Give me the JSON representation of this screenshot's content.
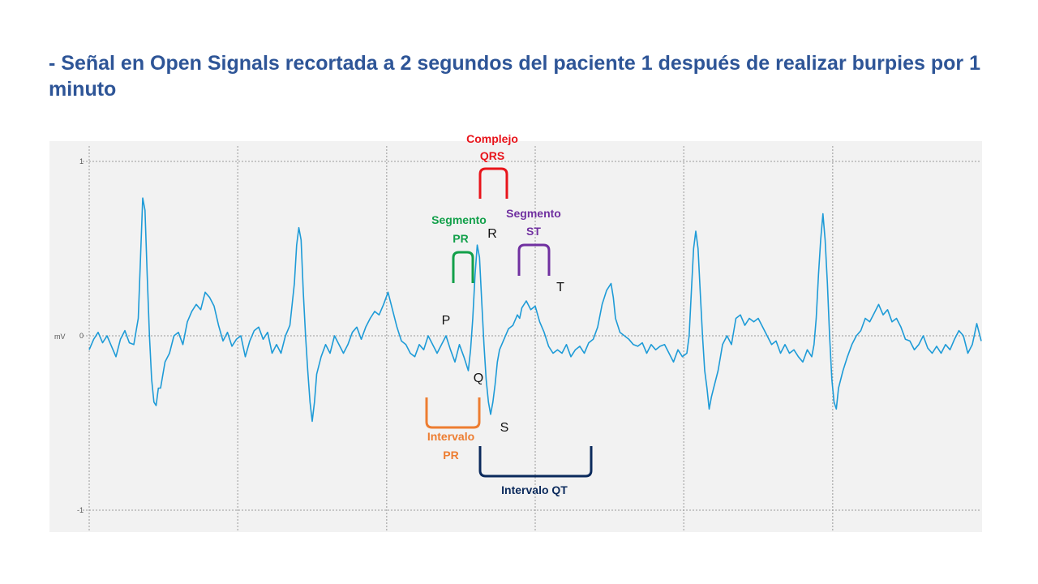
{
  "slide": {
    "title": "- Señal en Open Signals recortada a 2 segundos del paciente 1 después de realizar burpies por 1 minuto"
  },
  "colors": {
    "signal": "#1E9BD7",
    "background": "#F2F2F2",
    "grid": "#9A9A9A",
    "title": "#2E5597",
    "qrs": "#E8141B",
    "pr_segment": "#12A04A",
    "st_segment": "#7030A0",
    "pr_interval": "#ED7D31",
    "qt_interval": "#0B2A5C"
  },
  "chart_data": {
    "type": "line",
    "ylabel": "mV",
    "ylim": [
      -1.1,
      1.05
    ],
    "y_ticks": [
      {
        "value": 1,
        "label": "1"
      },
      {
        "value": 0,
        "label": "0"
      },
      {
        "value": -1,
        "label": "-1"
      }
    ],
    "xlim": [
      0,
      2
    ],
    "x_gridlines": [
      0,
      0.333,
      0.667,
      1.0,
      1.333,
      1.667
    ],
    "grid": true,
    "series": [
      {
        "points": [
          [
            0.0,
            -0.08
          ],
          [
            0.01,
            -0.02
          ],
          [
            0.02,
            0.02
          ],
          [
            0.03,
            -0.04
          ],
          [
            0.04,
            0.0
          ],
          [
            0.05,
            -0.06
          ],
          [
            0.06,
            -0.12
          ],
          [
            0.07,
            -0.02
          ],
          [
            0.08,
            0.03
          ],
          [
            0.09,
            -0.04
          ],
          [
            0.1,
            -0.05
          ],
          [
            0.11,
            0.1
          ],
          [
            0.115,
            0.45
          ],
          [
            0.12,
            0.79
          ],
          [
            0.125,
            0.72
          ],
          [
            0.13,
            0.35
          ],
          [
            0.135,
            0.0
          ],
          [
            0.14,
            -0.25
          ],
          [
            0.145,
            -0.38
          ],
          [
            0.15,
            -0.4
          ],
          [
            0.155,
            -0.3
          ],
          [
            0.16,
            -0.3
          ],
          [
            0.17,
            -0.15
          ],
          [
            0.18,
            -0.1
          ],
          [
            0.19,
            0.0
          ],
          [
            0.2,
            0.02
          ],
          [
            0.21,
            -0.05
          ],
          [
            0.22,
            0.08
          ],
          [
            0.23,
            0.14
          ],
          [
            0.24,
            0.18
          ],
          [
            0.25,
            0.15
          ],
          [
            0.26,
            0.25
          ],
          [
            0.27,
            0.22
          ],
          [
            0.28,
            0.17
          ],
          [
            0.29,
            0.06
          ],
          [
            0.3,
            -0.03
          ],
          [
            0.31,
            0.02
          ],
          [
            0.32,
            -0.06
          ],
          [
            0.33,
            -0.02
          ],
          [
            0.34,
            0.0
          ],
          [
            0.35,
            -0.12
          ],
          [
            0.36,
            -0.03
          ],
          [
            0.37,
            0.03
          ],
          [
            0.38,
            0.05
          ],
          [
            0.39,
            -0.02
          ],
          [
            0.4,
            0.02
          ],
          [
            0.41,
            -0.1
          ],
          [
            0.42,
            -0.05
          ],
          [
            0.43,
            -0.1
          ],
          [
            0.44,
            0.0
          ],
          [
            0.45,
            0.06
          ],
          [
            0.46,
            0.3
          ],
          [
            0.465,
            0.52
          ],
          [
            0.47,
            0.62
          ],
          [
            0.475,
            0.55
          ],
          [
            0.48,
            0.25
          ],
          [
            0.485,
            0.0
          ],
          [
            0.49,
            -0.2
          ],
          [
            0.495,
            -0.38
          ],
          [
            0.5,
            -0.49
          ],
          [
            0.505,
            -0.38
          ],
          [
            0.51,
            -0.22
          ],
          [
            0.52,
            -0.12
          ],
          [
            0.53,
            -0.05
          ],
          [
            0.54,
            -0.1
          ],
          [
            0.55,
            0.0
          ],
          [
            0.56,
            -0.05
          ],
          [
            0.57,
            -0.1
          ],
          [
            0.58,
            -0.05
          ],
          [
            0.59,
            0.02
          ],
          [
            0.6,
            0.05
          ],
          [
            0.61,
            -0.02
          ],
          [
            0.62,
            0.05
          ],
          [
            0.63,
            0.1
          ],
          [
            0.64,
            0.14
          ],
          [
            0.65,
            0.12
          ],
          [
            0.66,
            0.18
          ],
          [
            0.67,
            0.25
          ],
          [
            0.68,
            0.15
          ],
          [
            0.69,
            0.05
          ],
          [
            0.7,
            -0.03
          ],
          [
            0.71,
            -0.05
          ],
          [
            0.72,
            -0.1
          ],
          [
            0.73,
            -0.12
          ],
          [
            0.74,
            -0.05
          ],
          [
            0.75,
            -0.08
          ],
          [
            0.76,
            0.0
          ],
          [
            0.77,
            -0.05
          ],
          [
            0.78,
            -0.1
          ],
          [
            0.79,
            -0.05
          ],
          [
            0.8,
            0.0
          ],
          [
            0.81,
            -0.08
          ],
          [
            0.82,
            -0.15
          ],
          [
            0.83,
            -0.05
          ],
          [
            0.84,
            -0.12
          ],
          [
            0.85,
            -0.2
          ],
          [
            0.855,
            -0.08
          ],
          [
            0.86,
            0.1
          ],
          [
            0.865,
            0.35
          ],
          [
            0.87,
            0.52
          ],
          [
            0.875,
            0.45
          ],
          [
            0.88,
            0.2
          ],
          [
            0.885,
            -0.05
          ],
          [
            0.89,
            -0.25
          ],
          [
            0.895,
            -0.38
          ],
          [
            0.9,
            -0.45
          ],
          [
            0.905,
            -0.38
          ],
          [
            0.91,
            -0.28
          ],
          [
            0.915,
            -0.15
          ],
          [
            0.92,
            -0.08
          ],
          [
            0.93,
            -0.02
          ],
          [
            0.94,
            0.04
          ],
          [
            0.95,
            0.06
          ],
          [
            0.96,
            0.12
          ],
          [
            0.965,
            0.1
          ],
          [
            0.97,
            0.16
          ],
          [
            0.98,
            0.2
          ],
          [
            0.99,
            0.15
          ],
          [
            1.0,
            0.17
          ],
          [
            1.01,
            0.08
          ],
          [
            1.02,
            0.02
          ],
          [
            1.03,
            -0.06
          ],
          [
            1.04,
            -0.1
          ],
          [
            1.05,
            -0.08
          ],
          [
            1.06,
            -0.1
          ],
          [
            1.07,
            -0.05
          ],
          [
            1.08,
            -0.12
          ],
          [
            1.09,
            -0.08
          ],
          [
            1.1,
            -0.06
          ],
          [
            1.11,
            -0.1
          ],
          [
            1.12,
            -0.04
          ],
          [
            1.13,
            -0.02
          ],
          [
            1.14,
            0.05
          ],
          [
            1.15,
            0.18
          ],
          [
            1.16,
            0.26
          ],
          [
            1.17,
            0.3
          ],
          [
            1.175,
            0.22
          ],
          [
            1.18,
            0.1
          ],
          [
            1.19,
            0.02
          ],
          [
            1.2,
            0.0
          ],
          [
            1.21,
            -0.02
          ],
          [
            1.22,
            -0.05
          ],
          [
            1.23,
            -0.06
          ],
          [
            1.24,
            -0.04
          ],
          [
            1.25,
            -0.1
          ],
          [
            1.26,
            -0.05
          ],
          [
            1.27,
            -0.08
          ],
          [
            1.28,
            -0.06
          ],
          [
            1.29,
            -0.05
          ],
          [
            1.3,
            -0.1
          ],
          [
            1.31,
            -0.15
          ],
          [
            1.32,
            -0.08
          ],
          [
            1.33,
            -0.12
          ],
          [
            1.34,
            -0.1
          ],
          [
            1.345,
            0.0
          ],
          [
            1.35,
            0.25
          ],
          [
            1.355,
            0.5
          ],
          [
            1.36,
            0.6
          ],
          [
            1.365,
            0.5
          ],
          [
            1.37,
            0.25
          ],
          [
            1.375,
            0.0
          ],
          [
            1.38,
            -0.2
          ],
          [
            1.385,
            -0.3
          ],
          [
            1.39,
            -0.42
          ],
          [
            1.395,
            -0.35
          ],
          [
            1.4,
            -0.3
          ],
          [
            1.41,
            -0.2
          ],
          [
            1.42,
            -0.05
          ],
          [
            1.43,
            0.0
          ],
          [
            1.44,
            -0.05
          ],
          [
            1.45,
            0.1
          ],
          [
            1.46,
            0.12
          ],
          [
            1.47,
            0.06
          ],
          [
            1.48,
            0.1
          ],
          [
            1.49,
            0.08
          ],
          [
            1.5,
            0.1
          ],
          [
            1.51,
            0.05
          ],
          [
            1.52,
            0.0
          ],
          [
            1.53,
            -0.05
          ],
          [
            1.54,
            -0.03
          ],
          [
            1.55,
            -0.1
          ],
          [
            1.56,
            -0.05
          ],
          [
            1.57,
            -0.1
          ],
          [
            1.58,
            -0.08
          ],
          [
            1.59,
            -0.12
          ],
          [
            1.6,
            -0.15
          ],
          [
            1.61,
            -0.08
          ],
          [
            1.62,
            -0.12
          ],
          [
            1.625,
            -0.05
          ],
          [
            1.63,
            0.1
          ],
          [
            1.635,
            0.35
          ],
          [
            1.64,
            0.55
          ],
          [
            1.645,
            0.7
          ],
          [
            1.65,
            0.55
          ],
          [
            1.655,
            0.3
          ],
          [
            1.66,
            0.0
          ],
          [
            1.665,
            -0.25
          ],
          [
            1.67,
            -0.38
          ],
          [
            1.675,
            -0.42
          ],
          [
            1.68,
            -0.3
          ],
          [
            1.69,
            -0.2
          ],
          [
            1.7,
            -0.12
          ],
          [
            1.71,
            -0.05
          ],
          [
            1.72,
            0.0
          ],
          [
            1.73,
            0.03
          ],
          [
            1.74,
            0.1
          ],
          [
            1.75,
            0.08
          ],
          [
            1.76,
            0.13
          ],
          [
            1.77,
            0.18
          ],
          [
            1.78,
            0.12
          ],
          [
            1.79,
            0.15
          ],
          [
            1.8,
            0.08
          ],
          [
            1.81,
            0.1
          ],
          [
            1.82,
            0.05
          ],
          [
            1.83,
            -0.02
          ],
          [
            1.84,
            -0.03
          ],
          [
            1.85,
            -0.08
          ],
          [
            1.86,
            -0.05
          ],
          [
            1.87,
            0.0
          ],
          [
            1.88,
            -0.07
          ],
          [
            1.89,
            -0.1
          ],
          [
            1.9,
            -0.06
          ],
          [
            1.91,
            -0.1
          ],
          [
            1.92,
            -0.05
          ],
          [
            1.93,
            -0.08
          ],
          [
            1.94,
            -0.02
          ],
          [
            1.95,
            0.03
          ],
          [
            1.96,
            0.0
          ],
          [
            1.97,
            -0.1
          ],
          [
            1.98,
            -0.05
          ],
          [
            1.99,
            0.07
          ],
          [
            2.0,
            -0.03
          ]
        ]
      }
    ],
    "wave_labels": [
      "P",
      "Q",
      "R",
      "S",
      "T"
    ],
    "annotations": {
      "qrs": {
        "line1": "Complejo",
        "line2": "QRS"
      },
      "pr_segment": {
        "line1": "Segmento",
        "line2": "PR"
      },
      "st_segment": {
        "line1": "Segmento",
        "line2": "ST"
      },
      "pr_interval": {
        "line1": "Intervalo",
        "line2": "PR"
      },
      "qt_interval": {
        "line1": "Intervalo QT"
      }
    }
  }
}
